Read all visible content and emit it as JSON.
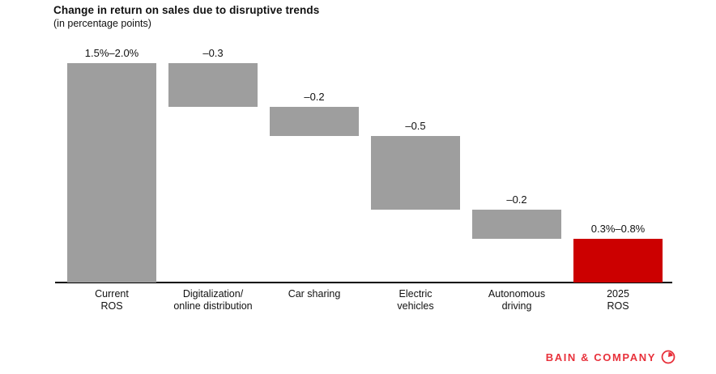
{
  "chart": {
    "title": "Change in return on sales due to disruptive trends",
    "subtitle": "(in percentage points)"
  },
  "chart_data": {
    "type": "waterfall",
    "title": "Change in return on sales due to disruptive trends",
    "subtitle": "(in percentage points)",
    "unit": "percentage points of return on sales",
    "grid": false,
    "axis": {
      "baseline_value": 0,
      "max_value": 1.5
    },
    "categories": [
      "Current ROS",
      "Digitalization/ online distribution",
      "Car sharing",
      "Electric vehicles",
      "Autonomous driving",
      "2025 ROS"
    ],
    "category_lines": [
      [
        "Current",
        "ROS"
      ],
      [
        "Digitalization/",
        "online distribution"
      ],
      [
        "Car sharing"
      ],
      [
        "Electric",
        "vehicles"
      ],
      [
        "Autonomous",
        "driving"
      ],
      [
        "2025",
        "ROS"
      ]
    ],
    "bars": [
      {
        "name": "current-ros",
        "label": "1.5%–2.0%",
        "start": 0,
        "end": 1.5,
        "role": "start-total",
        "color": "#9e9e9e"
      },
      {
        "name": "digitalization",
        "label": "–0.3",
        "start": 1.5,
        "end": 1.2,
        "role": "decrease",
        "color": "#9e9e9e"
      },
      {
        "name": "car-sharing",
        "label": "–0.2",
        "start": 1.2,
        "end": 1.0,
        "role": "decrease",
        "color": "#9e9e9e"
      },
      {
        "name": "electric-vehicles",
        "label": "–0.5",
        "start": 1.0,
        "end": 0.5,
        "role": "decrease",
        "color": "#9e9e9e"
      },
      {
        "name": "autonomous-driving",
        "label": "–0.2",
        "start": 0.5,
        "end": 0.3,
        "role": "decrease",
        "color": "#9e9e9e"
      },
      {
        "name": "2025-ros",
        "label": "0.3%–0.8%",
        "start": 0,
        "end": 0.3,
        "role": "end-total",
        "color": "#cc0000"
      }
    ],
    "colors": {
      "bar_gray": "#9e9e9e",
      "bar_red": "#cc0000",
      "axis": "#000000"
    }
  },
  "footer": {
    "brand": "BAIN & COMPANY",
    "brand_color": "#e8313b",
    "logo_icon": "bain-compass-icon"
  }
}
